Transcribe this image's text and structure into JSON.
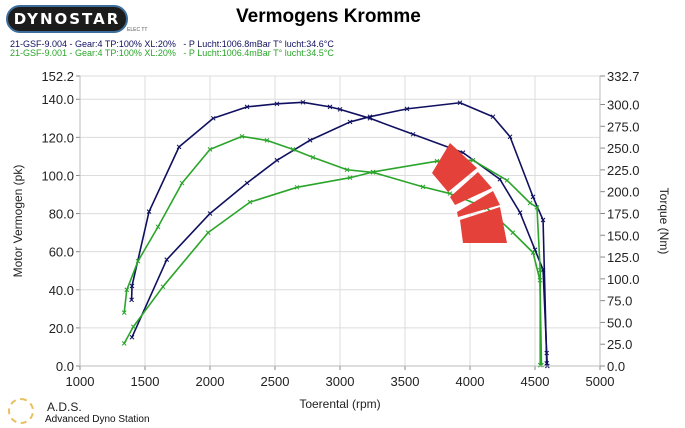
{
  "header": {
    "brand": "DYNOSTAR",
    "brand_sub": "ELEC TT",
    "title": "Vermogens Kromme"
  },
  "legend": [
    {
      "text": "21-GSF-9.004 - Gear:4 TP:100% XL:20%   - P Lucht:1006.8mBar T° lucht:34.6°C",
      "color": "#101060"
    },
    {
      "text": "21-GSF-9.001 - Gear:4 TP:100% XL:20%   - P Lucht:1006.4mBar T° lucht:34.5°C",
      "color": "#2aa52a"
    }
  ],
  "footer": {
    "ads_title": "A.D.S.",
    "ads_subtitle": "Advanced Dyno Station"
  },
  "chart_data": {
    "type": "line",
    "title": "Vermogens Kromme",
    "xlabel": "Toerental (rpm)",
    "ylabel": "Motor Vermogen (pk)",
    "y2label": "Torque (Nm)",
    "xlim": [
      1000,
      5000
    ],
    "ylim": [
      0,
      152.2
    ],
    "y2lim": [
      0,
      332.7
    ],
    "grid": true,
    "x_ticks": [
      "1000",
      "1500",
      "2000",
      "2500",
      "3000",
      "3500",
      "4000",
      "4500",
      "5000"
    ],
    "y_ticks": [
      "0.0",
      "20.0",
      "40.0",
      "60.0",
      "80.0",
      "100.0",
      "120.0",
      "140.0",
      "152.2"
    ],
    "y2_ticks": [
      "0.0",
      "25.0",
      "50.0",
      "75.0",
      "100.0",
      "125.0",
      "150.0",
      "175.0",
      "200.0",
      "225.0",
      "250.0",
      "275.0",
      "300.0",
      "332.7"
    ],
    "series": [
      {
        "name": "21-GSF-9.004 power",
        "axis": "left",
        "color": "#101060",
        "x": [
          1397,
          1400,
          1531,
          1762,
          2025,
          2285,
          2515,
          2715,
          2923,
          3000,
          3230,
          3562,
          3946,
          4230,
          4385,
          4500,
          4562,
          4590,
          4595
        ],
        "y": [
          34.7,
          42,
          81,
          115,
          130,
          136,
          137.6,
          138.4,
          136,
          134.7,
          130,
          121.6,
          112,
          98,
          80.5,
          61,
          50.5,
          6.8,
          0
        ]
      },
      {
        "name": "21-GSF-9.004 torque",
        "axis": "right",
        "color": "#101060",
        "x": [
          1400,
          1667,
          2000,
          2285,
          2515,
          2770,
          3077,
          3230,
          3515,
          3923,
          4177,
          4308,
          4485,
          4562,
          4590
        ],
        "y": [
          33,
          122,
          175,
          210,
          236,
          259,
          280,
          286,
          295,
          302,
          286,
          263,
          194,
          167.5,
          3
        ]
      },
      {
        "name": "21-GSF-9.001 power",
        "axis": "left",
        "color": "#2aa52a",
        "x": [
          1340,
          1360,
          1446,
          1600,
          1785,
          2000,
          2246,
          2438,
          2638,
          2792,
          3054,
          3254,
          3638,
          3846,
          4128,
          4330,
          4485,
          4538,
          4550
        ],
        "y": [
          28,
          40,
          55,
          73,
          96,
          113.7,
          120.5,
          118.4,
          113.7,
          109.5,
          103,
          101.6,
          94,
          90.5,
          83,
          70,
          59.5,
          45,
          0.5
        ]
      },
      {
        "name": "21-GSF-9.001 torque",
        "axis": "right",
        "color": "#2aa52a",
        "x": [
          1340,
          1410,
          1638,
          1985,
          2308,
          2669,
          3077,
          3254,
          3746,
          4023,
          4285,
          4462,
          4515,
          4540,
          4540
        ],
        "y": [
          26,
          45,
          91,
          153,
          188,
          205,
          216,
          222.6,
          235,
          236,
          213,
          187,
          182,
          110,
          1
        ]
      }
    ]
  }
}
